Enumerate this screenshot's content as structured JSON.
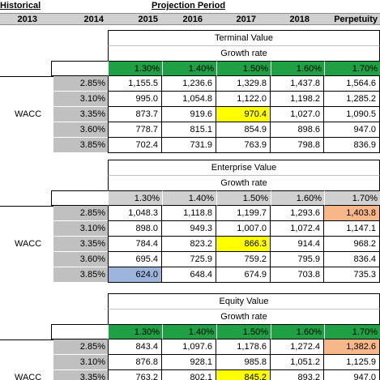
{
  "header": {
    "historical": "Historical",
    "projection": "Projection Period",
    "years": [
      "2013",
      "2014",
      "2015",
      "2016",
      "2017",
      "2018",
      "Perpetuity"
    ]
  },
  "wacc_label": "WACC",
  "wacc_rates": [
    "2.85%",
    "3.10%",
    "3.35%",
    "3.60%",
    "3.85%"
  ],
  "growth_label": "Growth rate",
  "growth_rates": [
    "1.30%",
    "1.40%",
    "1.50%",
    "1.60%",
    "1.70%"
  ],
  "colors": {
    "green": "#1fa045",
    "gray": "#d0d0d0",
    "yellow": "#ffff00",
    "orange": "#f8b789",
    "blue": "#9db4dd"
  },
  "sections": [
    {
      "title": "Terminal Value",
      "rate_style": "green",
      "rows": [
        [
          "1,155.5",
          "1,236.6",
          "1,329.8",
          "1,437.8",
          "1,564.6"
        ],
        [
          "995.0",
          "1,054.8",
          "1,122.0",
          "1,198.2",
          "1,285.2"
        ],
        [
          "873.7",
          "919.6",
          "970.4",
          "1,027.0",
          "1,090.5"
        ],
        [
          "778.7",
          "815.1",
          "854.9",
          "898.6",
          "947.0"
        ],
        [
          "702.4",
          "731.9",
          "763.9",
          "798.8",
          "836.9"
        ]
      ],
      "highlights": [
        {
          "row": 2,
          "col": 2,
          "color": "yellow"
        }
      ]
    },
    {
      "title": "Enterprise Value",
      "rate_style": "gray",
      "rows": [
        [
          "1,048.3",
          "1,118.8",
          "1,199.7",
          "1,293.6",
          "1,403.8"
        ],
        [
          "898.0",
          "949.3",
          "1,007.0",
          "1,072.4",
          "1,147.1"
        ],
        [
          "784.4",
          "823.2",
          "866.3",
          "914.4",
          "968.2"
        ],
        [
          "695.4",
          "725.9",
          "759.2",
          "795.9",
          "836.4"
        ],
        [
          "624.0",
          "648.4",
          "674.9",
          "703.8",
          "735.3"
        ]
      ],
      "highlights": [
        {
          "row": 0,
          "col": 4,
          "color": "orange"
        },
        {
          "row": 2,
          "col": 2,
          "color": "yellow"
        },
        {
          "row": 4,
          "col": 0,
          "color": "blue"
        }
      ]
    },
    {
      "title": "Equity Value",
      "rate_style": "green",
      "rows": [
        [
          "843.4",
          "1,097.6",
          "1,178.6",
          "1,272.4",
          "1,382.6"
        ],
        [
          "876.8",
          "928.1",
          "985.8",
          "1,051.2",
          "1,125.9"
        ],
        [
          "763.2",
          "802.1",
          "845.2",
          "893.2",
          "947.0"
        ]
      ],
      "highlights": [
        {
          "row": 0,
          "col": 4,
          "color": "orange"
        },
        {
          "row": 2,
          "col": 2,
          "color": "yellow"
        }
      ]
    }
  ]
}
